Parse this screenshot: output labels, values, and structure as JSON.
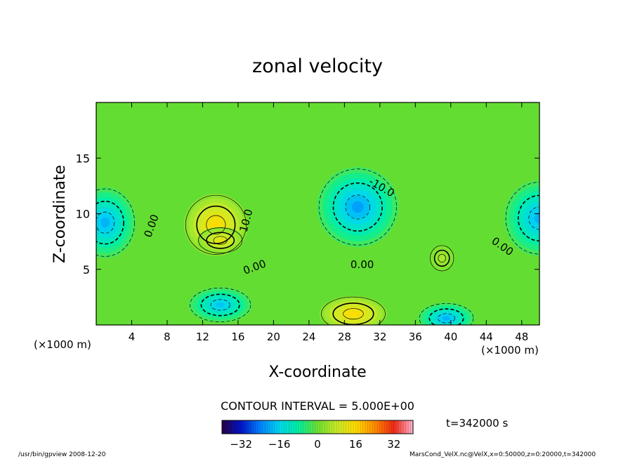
{
  "chart_data": {
    "type": "heatmap",
    "title": "zonal velocity",
    "xlabel": "X-coordinate",
    "ylabel": "Z-coordinate",
    "x_unit_left": "(×1000 m)",
    "x_unit_right": "(×1000 m)",
    "xlim": [
      0,
      50
    ],
    "ylim": [
      0,
      20
    ],
    "x_ticks": [
      4,
      8,
      12,
      16,
      20,
      24,
      28,
      32,
      36,
      40,
      44,
      48
    ],
    "y_ticks": [
      5,
      10,
      15
    ],
    "contour_interval": "CONTOUR INTERVAL = 5.000E+00",
    "contour_labels": [
      {
        "text": "0.00",
        "x": 6.6,
        "y": 8.8,
        "rotate": -70
      },
      {
        "text": "10.0",
        "x": 17.3,
        "y": 9.3,
        "rotate": -75
      },
      {
        "text": "0.00",
        "x": 18.0,
        "y": 4.9,
        "rotate": -20
      },
      {
        "text": "0.00",
        "x": 30.0,
        "y": 5.1,
        "rotate": 0
      },
      {
        "text": "-10.0",
        "x": 32.0,
        "y": 12.1,
        "rotate": 30
      },
      {
        "text": "0.00",
        "x": 45.6,
        "y": 6.8,
        "rotate": 35
      }
    ],
    "extrema": [
      {
        "sign": "negative",
        "x": 1.0,
        "y": 9.2,
        "value": -22,
        "rx": 3.5,
        "ry": 3.2
      },
      {
        "sign": "negative",
        "x": 50.0,
        "y": 9.6,
        "value": -22,
        "rx": 4.0,
        "ry": 3.4
      },
      {
        "sign": "negative",
        "x": 14.0,
        "y": 1.8,
        "value": -20,
        "rx": 3.6,
        "ry": 1.6
      },
      {
        "sign": "negative",
        "x": 29.5,
        "y": 10.6,
        "value": -24,
        "rx": 4.6,
        "ry": 3.6
      },
      {
        "sign": "negative",
        "x": 39.5,
        "y": 0.6,
        "value": -22,
        "rx": 3.2,
        "ry": 1.4
      },
      {
        "sign": "positive",
        "x": 13.5,
        "y": 9.0,
        "value": 18,
        "rx": 3.6,
        "ry": 2.8
      },
      {
        "sign": "positive",
        "x": 14.0,
        "y": 7.6,
        "value": 14,
        "rx": 2.6,
        "ry": 1.2
      },
      {
        "sign": "positive",
        "x": 29.0,
        "y": 1.0,
        "value": 18,
        "rx": 3.8,
        "ry": 1.6
      },
      {
        "sign": "positive",
        "x": 39.0,
        "y": 6.0,
        "value": 6,
        "rx": 1.4,
        "ry": 1.2
      }
    ],
    "colorbar": {
      "min": -40,
      "max": 40,
      "tick_labels": [
        -32,
        -16,
        0,
        16,
        32
      ]
    },
    "time_label": "t=342000 s",
    "footer_left": "/usr/bin/gpview  2008-12-20",
    "footer_right": "MarsCond_VelX.nc@VelX,x=0:50000,z=0:20000,t=342000"
  }
}
